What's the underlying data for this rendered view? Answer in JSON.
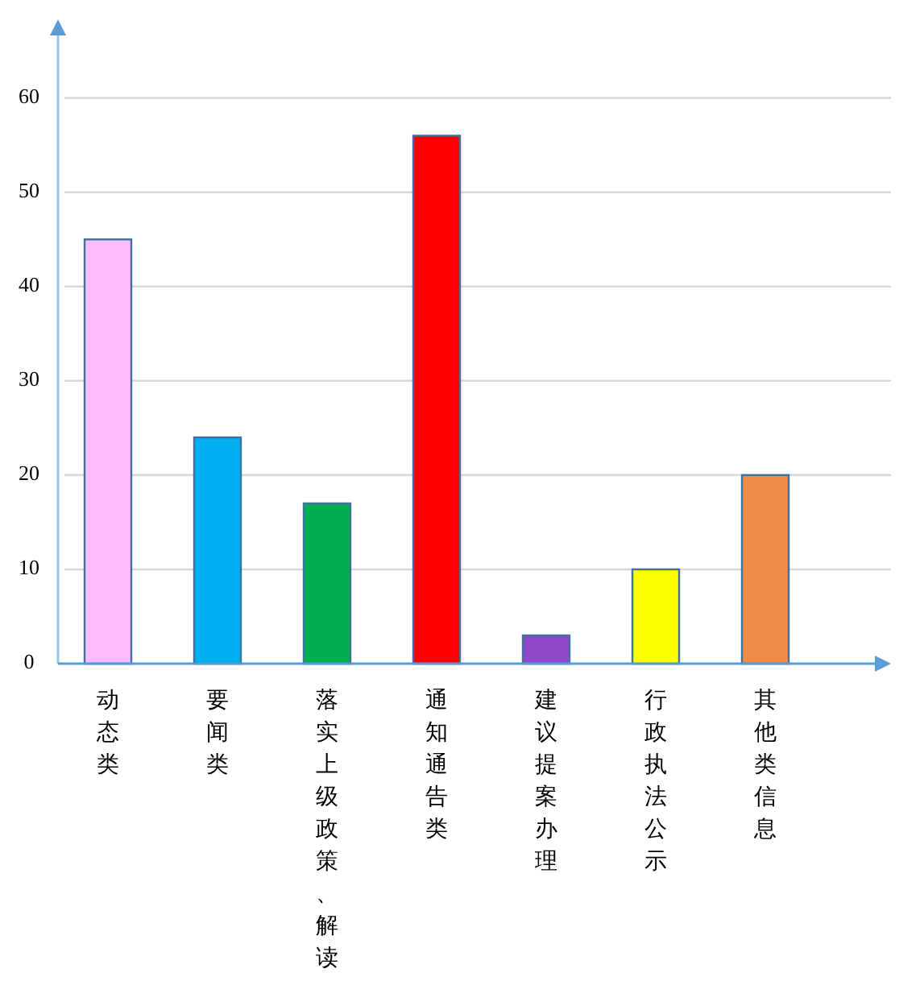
{
  "chart_data": {
    "type": "bar",
    "categories": [
      "动态类",
      "要闻类",
      "落实上级政策、解读",
      "通知通告类",
      "建议提案办理",
      "行政执法公示",
      "其他类信息"
    ],
    "values": [
      45,
      24,
      17,
      56,
      3,
      10,
      20
    ],
    "colors": [
      "#ffbbff",
      "#00b0f0",
      "#00b050",
      "#ff0000",
      "#9046c8",
      "#ffff00",
      "#f08c48"
    ],
    "ylim": [
      0,
      68
    ],
    "yticks": [
      0,
      10,
      20,
      30,
      40,
      50,
      60
    ],
    "grid": "y"
  }
}
